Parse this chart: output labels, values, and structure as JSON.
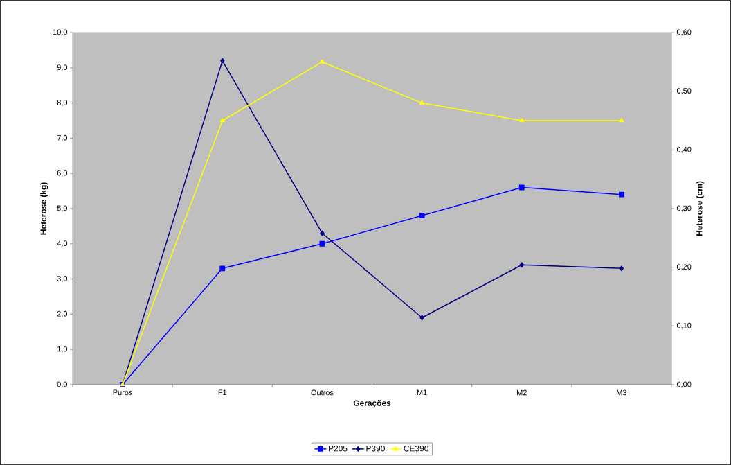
{
  "chart_data": {
    "type": "line",
    "xlabel": "Gerações",
    "ylabel": "Heterose (kg)",
    "y2label": "Heterose (cm)",
    "categories": [
      "Puros",
      "F1",
      "Outros",
      "M1",
      "M2",
      "M3"
    ],
    "series": [
      {
        "name": "P205",
        "color": "#0000ff",
        "marker": "square",
        "values": [
          0,
          3.3,
          4.0,
          4.8,
          5.6,
          5.4
        ]
      },
      {
        "name": "P390",
        "color": "#000080",
        "marker": "diamond",
        "values": [
          0,
          9.2,
          4.3,
          1.9,
          3.4,
          3.3
        ]
      },
      {
        "name": "CE390",
        "color": "#ffff00",
        "marker": "triangle",
        "axis": "y2",
        "values": [
          0,
          0.45,
          0.55,
          0.48,
          0.45,
          0.45
        ]
      }
    ],
    "ylim": [
      0,
      10
    ],
    "yticks": [
      {
        "value": 0,
        "label": "0,0"
      },
      {
        "value": 1,
        "label": "1,0"
      },
      {
        "value": 2,
        "label": "2,0"
      },
      {
        "value": 3,
        "label": "3,0"
      },
      {
        "value": 4,
        "label": "4,0"
      },
      {
        "value": 5,
        "label": "5,0"
      },
      {
        "value": 6,
        "label": "6,0"
      },
      {
        "value": 7,
        "label": "7,0"
      },
      {
        "value": 8,
        "label": "8,0"
      },
      {
        "value": 9,
        "label": "9,0"
      },
      {
        "value": 10,
        "label": "10,0"
      }
    ],
    "y2lim": [
      0,
      0.6
    ],
    "y2ticks": [
      {
        "value": 0,
        "label": "0,00"
      },
      {
        "value": 0.1,
        "label": "0,10"
      },
      {
        "value": 0.2,
        "label": "0,20"
      },
      {
        "value": 0.3,
        "label": "0,30"
      },
      {
        "value": 0.4,
        "label": "0,40"
      },
      {
        "value": 0.5,
        "label": "0,50"
      },
      {
        "value": 0.6,
        "label": "0,60"
      }
    ],
    "grid": false,
    "legend": "bottom",
    "line_style": "solid"
  }
}
